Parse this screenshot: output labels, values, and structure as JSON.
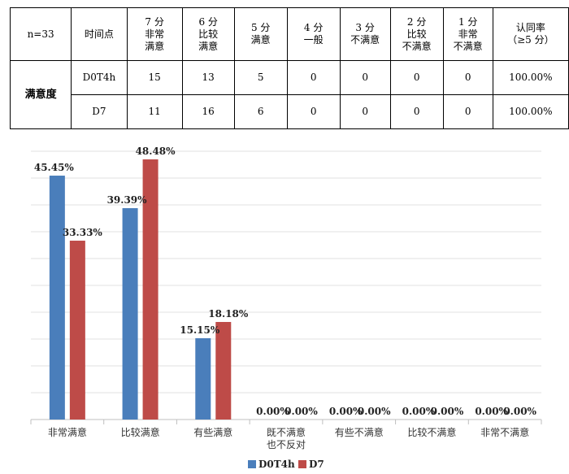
{
  "table": {
    "headers": [
      "n=33",
      "时间点",
      "7 分\n非常\n满意",
      "6 分\n比较\n满意",
      "5 分\n满意",
      "4 分\n一般",
      "3 分\n不满意",
      "2 分\n比较\n不满意",
      "1 分\n非常\n不满意",
      "认同率\n（≥5 分）"
    ],
    "group_label": "满意度",
    "rows": [
      [
        "D0T4h",
        "15",
        "13",
        "5",
        "0",
        "0",
        "0",
        "0",
        "100.00%"
      ],
      [
        "D7",
        "11",
        "16",
        "6",
        "0",
        "0",
        "0",
        "0",
        "100.00%"
      ]
    ]
  },
  "chart_data": {
    "type": "bar",
    "categories": [
      "非常满意",
      "比较满意",
      "有些满意",
      "既不满意\n也不反对",
      "有些不满意",
      "比较不满意",
      "非常不满意"
    ],
    "series": [
      {
        "name": "D0T4h",
        "color": "#4a7ebb",
        "values": [
          45.45,
          39.39,
          15.15,
          0,
          0,
          0,
          0
        ],
        "labels": [
          "45.45%",
          "39.39%",
          "15.15%",
          "0.00%",
          "0.00%",
          "0.00%",
          "0.00%"
        ]
      },
      {
        "name": "D7",
        "color": "#be4b48",
        "values": [
          33.33,
          48.48,
          18.18,
          0,
          0,
          0,
          0
        ],
        "labels": [
          "33.33%",
          "48.48%",
          "18.18%",
          "0.00%",
          "0.00%",
          "0.00%",
          "0.00%"
        ]
      }
    ],
    "ylim": [
      0,
      50
    ],
    "grid": true,
    "legend": "bottom"
  }
}
